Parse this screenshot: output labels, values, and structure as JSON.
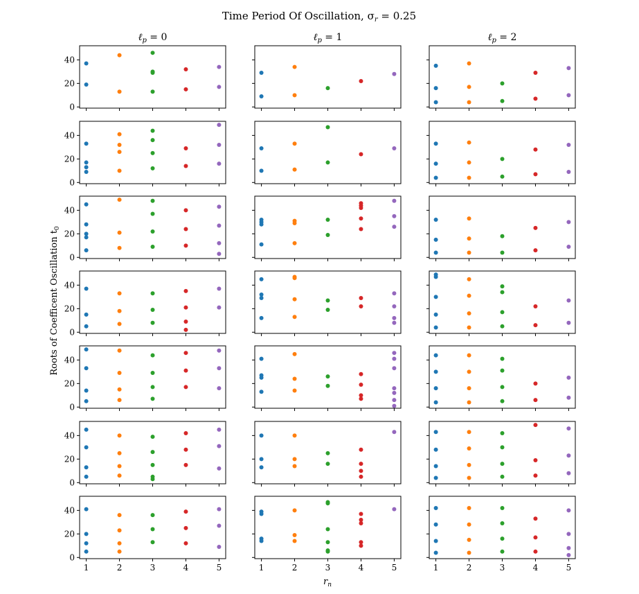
{
  "figure": {
    "suptitle": "Time Period Of Oscillation, σ",
    "suptitle_sub": "r",
    "suptitle_tail": " = 0.25",
    "ylabel": "Roots of Coefficent Oscillation t",
    "ylabel_sub": "0",
    "xlabel": "r",
    "xlabel_sub": "n"
  },
  "colors": {
    "1": "#1f77b4",
    "2": "#ff7f0e",
    "3": "#2ca02c",
    "4": "#d62728",
    "5": "#9467bd"
  },
  "chart_data": {
    "type": "scatter",
    "grid": false,
    "layout": "7 rows x 3 columns, shared axes",
    "xlim": [
      0.8,
      5.2
    ],
    "ylim": [
      -1,
      52
    ],
    "xticks": [
      1,
      2,
      3,
      4,
      5
    ],
    "yticks": [
      0,
      20,
      40
    ],
    "columns": [
      {
        "title": "ℓ",
        "title_sub": "p",
        "title_tail": " = 0"
      },
      {
        "title": "ℓ",
        "title_sub": "p",
        "title_tail": " = 1"
      },
      {
        "title": "ℓ",
        "title_sub": "p",
        "title_tail": " = 2"
      }
    ],
    "panels": [
      [
        {
          "1": [
            37,
            19
          ],
          "2": [
            44,
            13
          ],
          "3": [
            46,
            30,
            29,
            13
          ],
          "4": [
            32,
            15
          ],
          "5": [
            34,
            17
          ]
        },
        {
          "1": [
            29,
            9
          ],
          "2": [
            34,
            10
          ],
          "3": [
            16
          ],
          "4": [
            22
          ],
          "5": [
            28
          ]
        },
        {
          "1": [
            35,
            16,
            4
          ],
          "2": [
            37,
            17,
            4
          ],
          "3": [
            20,
            5
          ],
          "4": [
            29,
            7
          ],
          "5": [
            33,
            10
          ]
        }
      ],
      [
        {
          "1": [
            33,
            17,
            13,
            9
          ],
          "2": [
            41,
            32,
            26,
            10
          ],
          "3": [
            44,
            36,
            25,
            12
          ],
          "4": [
            29,
            14
          ],
          "5": [
            49,
            32,
            16
          ]
        },
        {
          "1": [
            29,
            10
          ],
          "2": [
            33,
            11
          ],
          "3": [
            47,
            17
          ],
          "4": [
            24
          ],
          "5": [
            29
          ]
        },
        {
          "1": [
            33,
            16,
            4
          ],
          "2": [
            34,
            17,
            4
          ],
          "3": [
            20,
            5
          ],
          "4": [
            28,
            7
          ],
          "5": [
            32,
            9
          ]
        }
      ],
      [
        {
          "1": [
            45,
            28,
            20,
            17,
            6
          ],
          "2": [
            49,
            21,
            8
          ],
          "3": [
            48,
            37,
            22,
            9
          ],
          "4": [
            40,
            24,
            10
          ],
          "5": [
            43,
            27,
            12,
            3
          ]
        },
        {
          "1": [
            32,
            30,
            28,
            11
          ],
          "2": [
            31,
            29,
            12
          ],
          "3": [
            32,
            19
          ],
          "4": [
            46,
            44,
            42,
            33,
            24
          ],
          "5": [
            48,
            35,
            26
          ]
        },
        {
          "1": [
            32,
            15,
            4
          ],
          "2": [
            33,
            16,
            4
          ],
          "3": [
            18,
            4
          ],
          "4": [
            25,
            6
          ],
          "5": [
            30,
            9
          ]
        }
      ],
      [
        {
          "1": [
            37,
            15,
            5
          ],
          "2": [
            33,
            18,
            7
          ],
          "3": [
            33,
            19,
            8
          ],
          "4": [
            35,
            21,
            9,
            2
          ],
          "5": [
            37,
            21
          ]
        },
        {
          "1": [
            45,
            32,
            29,
            12
          ],
          "2": [
            47,
            46,
            28,
            13
          ],
          "3": [
            27,
            19
          ],
          "4": [
            29,
            22
          ],
          "5": [
            33,
            22,
            12,
            8
          ]
        },
        {
          "1": [
            49,
            47,
            30,
            15,
            4
          ],
          "2": [
            45,
            31,
            16,
            4
          ],
          "3": [
            39,
            34,
            17,
            5
          ],
          "4": [
            22,
            6
          ],
          "5": [
            27,
            8
          ]
        }
      ],
      [
        {
          "1": [
            49,
            33,
            14,
            5
          ],
          "2": [
            48,
            29,
            15,
            6
          ],
          "3": [
            44,
            29,
            17,
            7
          ],
          "4": [
            46,
            31,
            17
          ],
          "5": [
            48,
            33,
            16
          ]
        },
        {
          "1": [
            41,
            27,
            25,
            13
          ],
          "2": [
            45,
            24,
            14
          ],
          "3": [
            26,
            18
          ],
          "4": [
            28,
            19,
            10,
            7
          ],
          "5": [
            46,
            41,
            33,
            16,
            12,
            6,
            1
          ]
        },
        {
          "1": [
            44,
            30,
            16,
            4
          ],
          "2": [
            44,
            30,
            16,
            4
          ],
          "3": [
            41,
            31,
            17,
            5
          ],
          "4": [
            20,
            6
          ],
          "5": [
            25,
            8
          ]
        }
      ],
      [
        {
          "1": [
            45,
            30,
            13,
            5
          ],
          "2": [
            40,
            25,
            14,
            6
          ],
          "3": [
            39,
            26,
            15,
            5,
            3
          ],
          "4": [
            42,
            28,
            15
          ],
          "5": [
            45,
            31,
            12
          ]
        },
        {
          "1": [
            40,
            20,
            13
          ],
          "2": [
            40,
            20,
            14
          ],
          "3": [
            25,
            16
          ],
          "4": [
            28,
            16,
            10,
            5
          ],
          "5": [
            43
          ]
        },
        {
          "1": [
            43,
            28,
            14,
            4
          ],
          "2": [
            43,
            29,
            15,
            4
          ],
          "3": [
            42,
            30,
            16,
            5
          ],
          "4": [
            49,
            19,
            6
          ],
          "5": [
            46,
            23,
            8
          ]
        }
      ],
      [
        {
          "1": [
            41,
            20,
            12,
            5
          ],
          "2": [
            36,
            23,
            12,
            5
          ],
          "3": [
            36,
            24,
            13
          ],
          "4": [
            39,
            25,
            12
          ],
          "5": [
            41,
            27,
            9
          ]
        },
        {
          "1": [
            39,
            37,
            16,
            14
          ],
          "2": [
            40,
            19,
            14
          ],
          "3": [
            47,
            46,
            24,
            13,
            6,
            5
          ],
          "4": [
            37,
            32,
            29,
            13,
            10
          ],
          "5": [
            41
          ]
        },
        {
          "1": [
            42,
            28,
            14,
            4
          ],
          "2": [
            42,
            28,
            15,
            4
          ],
          "3": [
            42,
            29,
            16,
            5
          ],
          "4": [
            33,
            17,
            5
          ],
          "5": [
            40,
            20,
            8,
            2
          ]
        }
      ]
    ]
  }
}
